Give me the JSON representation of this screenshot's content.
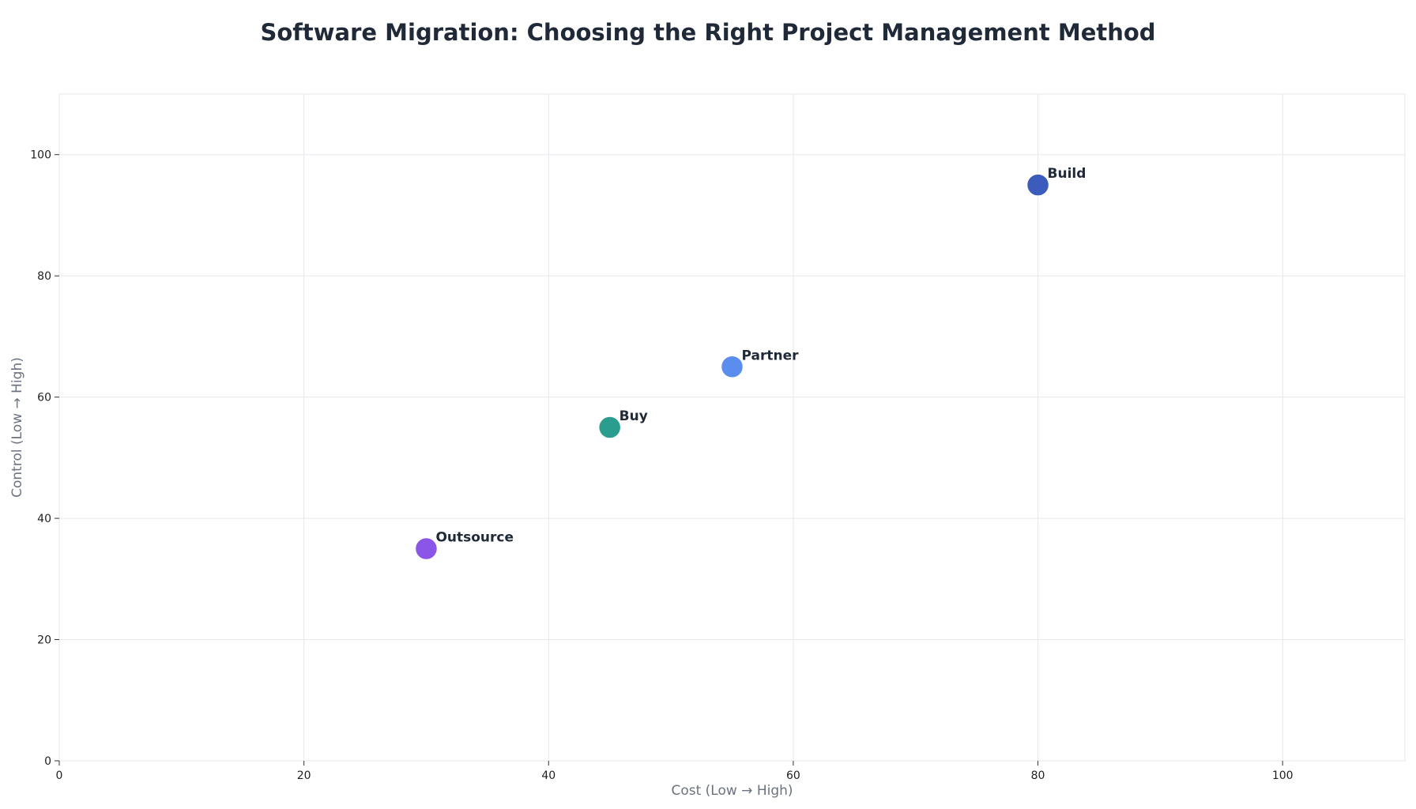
{
  "chart_data": {
    "type": "scatter",
    "title": "Software Migration: Choosing the Right Project Management Method",
    "xlabel": "Cost (Low → High)",
    "ylabel": "Control (Low → High)",
    "xlim": [
      0,
      110
    ],
    "ylim": [
      0,
      110
    ],
    "xticks": [
      0,
      20,
      40,
      60,
      80,
      100
    ],
    "yticks": [
      0,
      20,
      40,
      60,
      80,
      100
    ],
    "grid": true,
    "points": [
      {
        "label": "Build",
        "x": 80,
        "y": 95,
        "color": "#3b5bbd"
      },
      {
        "label": "Partner",
        "x": 55,
        "y": 65,
        "color": "#5b8def"
      },
      {
        "label": "Buy",
        "x": 45,
        "y": 55,
        "color": "#2a9d8f"
      },
      {
        "label": "Outsource",
        "x": 30,
        "y": 35,
        "color": "#8b55e8"
      }
    ]
  }
}
